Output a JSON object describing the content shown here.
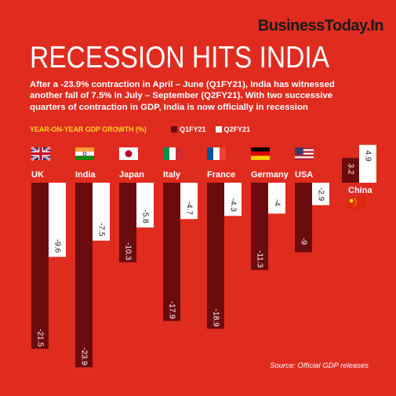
{
  "brand": "BusinessToday.In",
  "title": "RECESSION HITS INDIA",
  "subtitle": "After a -23.9% contraction in April – June (Q1FY21), India has witnessed another fall of 7.5% in July – September (Q2FY21). With two successive quarters of contraction in GDP, India is now officially in recession",
  "source": "Source: Official GDP releases",
  "colors": {
    "background": "#e02b1f",
    "q1": "#6b0b0d",
    "q2": "#ffffff",
    "ylabel": "#ffd21f"
  },
  "chart_data": {
    "type": "bar",
    "ylabel": "YEAR-ON-YEAR GDP GROWTH (%)",
    "categories": [
      "UK",
      "India",
      "Japan",
      "Italy",
      "France",
      "Germany",
      "USA",
      "China"
    ],
    "series": [
      {
        "name": "Q1FY21",
        "values": [
          -21.5,
          -23.9,
          -10.3,
          -17.9,
          -18.9,
          -11.3,
          -9,
          3.2
        ]
      },
      {
        "name": "Q2FY21",
        "values": [
          -9.6,
          -7.5,
          -5.8,
          -4.7,
          -4.3,
          -4,
          -2.9,
          4.9
        ]
      }
    ],
    "value_labels": [
      [
        "-21.5",
        "-23.9",
        "-10.3",
        "-17.9",
        "-18.9",
        "-11.3",
        "-9",
        "3.2"
      ],
      [
        "-9.6",
        "-7.5",
        "-5.8",
        "-4.7",
        "-4.3",
        "-4",
        "-2.9",
        "4.9"
      ]
    ],
    "flags": [
      "uk-flag",
      "india-flag",
      "japan-flag",
      "italy-flag",
      "france-flag",
      "germany-flag",
      "usa-flag",
      "china-flag"
    ],
    "ylim": [
      -23.9,
      4.9
    ]
  }
}
